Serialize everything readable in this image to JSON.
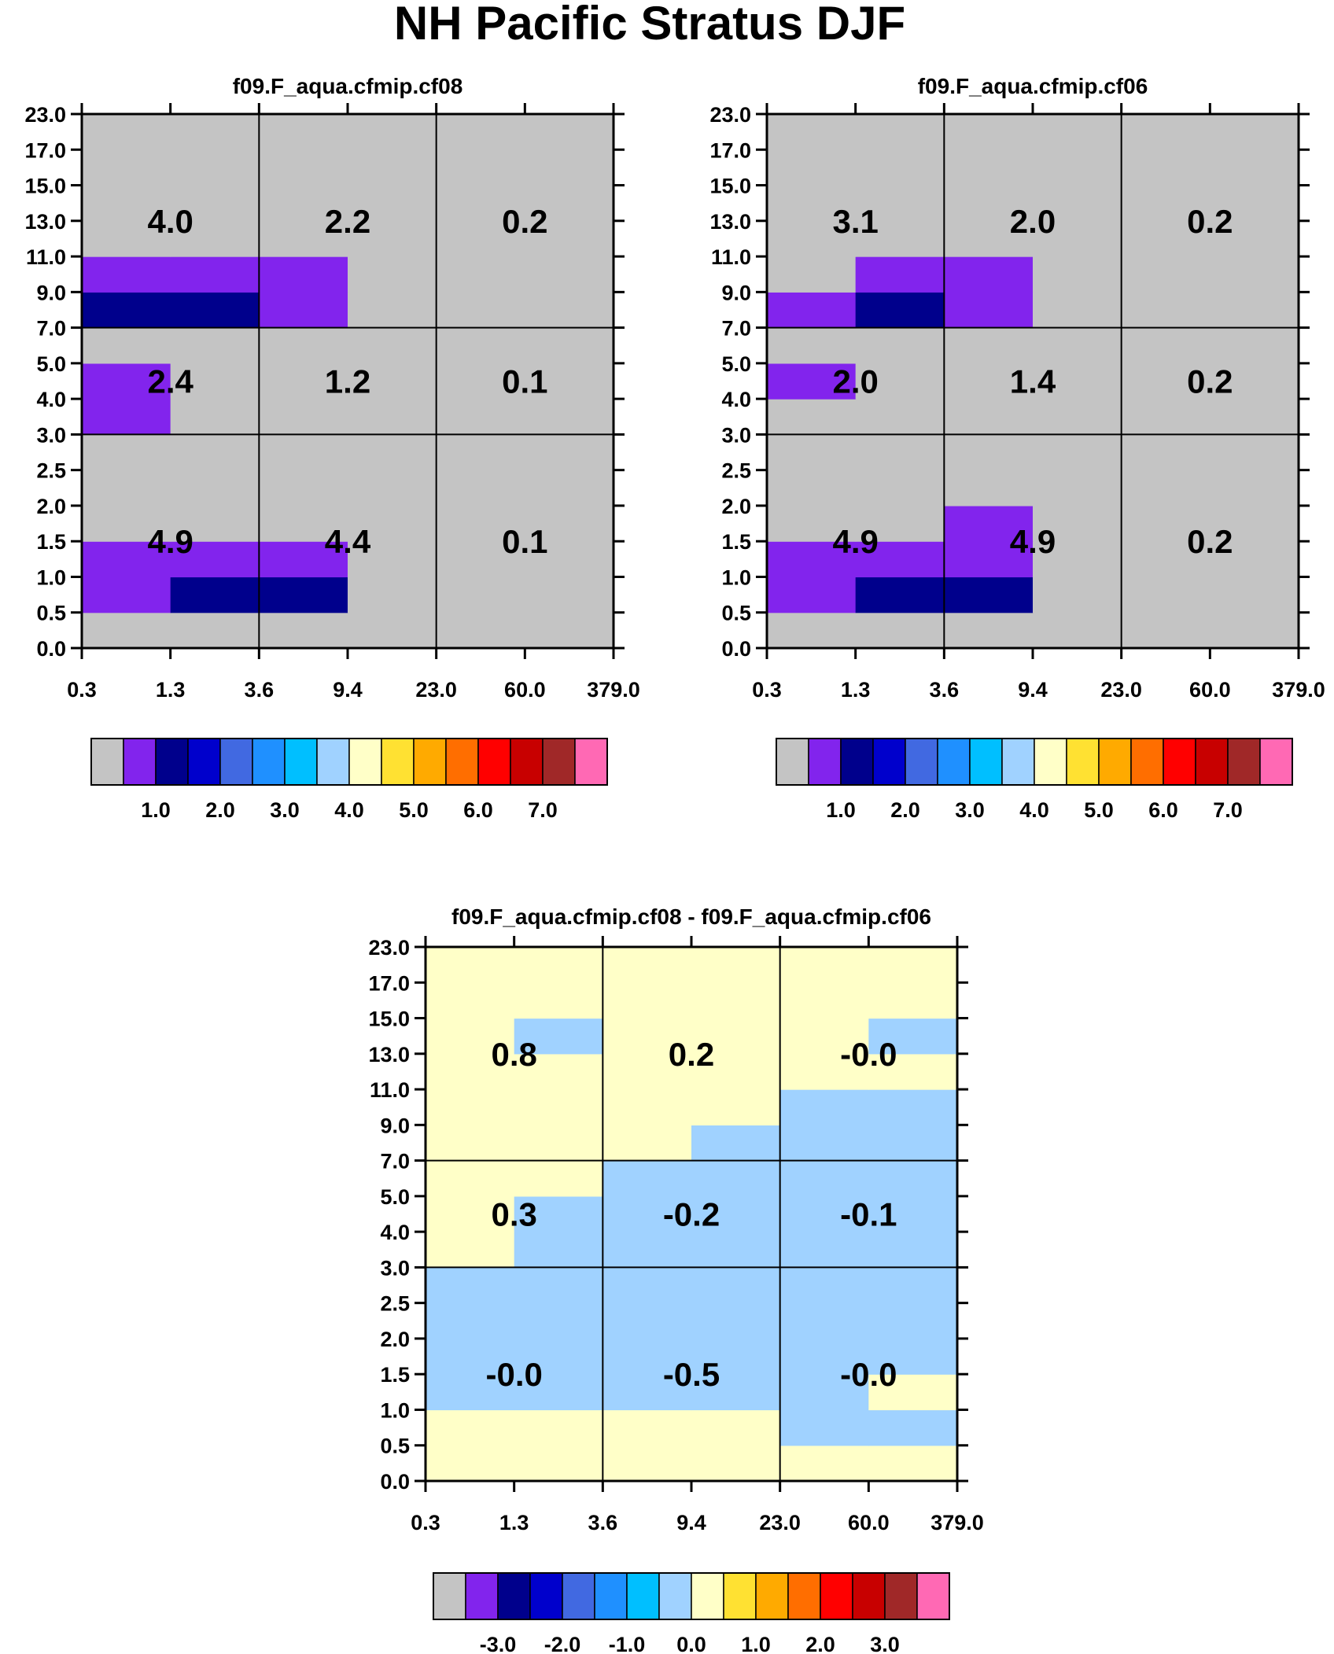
{
  "title": "NH Pacific Stratus DJF",
  "palette": [
    "#c4c4c4",
    "#8224ed",
    "#00008c",
    "#0000cc",
    "#4169e1",
    "#1f90ff",
    "#00bfff",
    "#a0d2ff",
    "#ffffc8",
    "#ffe132",
    "#ffaa00",
    "#ff6e00",
    "#ff0000",
    "#c80000",
    "#a02828",
    "#ff69b4"
  ],
  "chart_data": [
    {
      "type": "heatmap",
      "title": "f09.F_aqua.cfmip.cf08",
      "x_ticks": [
        "0.3",
        "1.3",
        "3.6",
        "9.4",
        "23.0",
        "60.0",
        "379.0"
      ],
      "y_ticks": [
        "0.0",
        "0.5",
        "1.0",
        "1.5",
        "2.0",
        "2.5",
        "3.0",
        "4.0",
        "5.0",
        "7.0",
        "9.0",
        "11.0",
        "13.0",
        "15.0",
        "17.0",
        "23.0"
      ],
      "grid": [
        [
          0,
          0,
          0,
          0,
          0,
          0
        ],
        [
          1,
          2,
          2,
          0,
          0,
          0
        ],
        [
          1,
          1,
          1,
          0,
          0,
          0
        ],
        [
          0,
          0,
          0,
          0,
          0,
          0
        ],
        [
          0,
          0,
          0,
          0,
          0,
          0
        ],
        [
          0,
          0,
          0,
          0,
          0,
          0
        ],
        [
          1,
          0,
          0,
          0,
          0,
          0
        ],
        [
          1,
          0,
          0,
          0,
          0,
          0
        ],
        [
          0,
          0,
          0,
          0,
          0,
          0
        ],
        [
          2,
          2,
          1,
          0,
          0,
          0
        ],
        [
          1,
          1,
          1,
          0,
          0,
          0
        ],
        [
          0,
          0,
          0,
          0,
          0,
          0
        ],
        [
          0,
          0,
          0,
          0,
          0,
          0
        ],
        [
          0,
          0,
          0,
          0,
          0,
          0
        ],
        [
          0,
          0,
          0,
          0,
          0,
          0
        ]
      ],
      "region_labels": [
        [
          "4.9",
          "4.4",
          "0.1"
        ],
        [
          "2.4",
          "1.2",
          "0.1"
        ],
        [
          "4.0",
          "2.2",
          "0.2"
        ]
      ],
      "colorbar": {
        "labels": [
          "1.0",
          "2.0",
          "3.0",
          "4.0",
          "5.0",
          "6.0",
          "7.0"
        ]
      }
    },
    {
      "type": "heatmap",
      "title": "f09.F_aqua.cfmip.cf06",
      "x_ticks": [
        "0.3",
        "1.3",
        "3.6",
        "9.4",
        "23.0",
        "60.0",
        "379.0"
      ],
      "y_ticks": [
        "0.0",
        "0.5",
        "1.0",
        "1.5",
        "2.0",
        "2.5",
        "3.0",
        "4.0",
        "5.0",
        "7.0",
        "9.0",
        "11.0",
        "13.0",
        "15.0",
        "17.0",
        "23.0"
      ],
      "grid": [
        [
          0,
          0,
          0,
          0,
          0,
          0
        ],
        [
          1,
          2,
          2,
          0,
          0,
          0
        ],
        [
          1,
          1,
          1,
          0,
          0,
          0
        ],
        [
          0,
          0,
          1,
          0,
          0,
          0
        ],
        [
          0,
          0,
          0,
          0,
          0,
          0
        ],
        [
          0,
          0,
          0,
          0,
          0,
          0
        ],
        [
          0,
          0,
          0,
          0,
          0,
          0
        ],
        [
          1,
          0,
          0,
          0,
          0,
          0
        ],
        [
          0,
          0,
          0,
          0,
          0,
          0
        ],
        [
          1,
          2,
          1,
          0,
          0,
          0
        ],
        [
          0,
          1,
          1,
          0,
          0,
          0
        ],
        [
          0,
          0,
          0,
          0,
          0,
          0
        ],
        [
          0,
          0,
          0,
          0,
          0,
          0
        ],
        [
          0,
          0,
          0,
          0,
          0,
          0
        ],
        [
          0,
          0,
          0,
          0,
          0,
          0
        ]
      ],
      "region_labels": [
        [
          "4.9",
          "4.9",
          "0.2"
        ],
        [
          "2.0",
          "1.4",
          "0.2"
        ],
        [
          "3.1",
          "2.0",
          "0.2"
        ]
      ],
      "colorbar": {
        "labels": [
          "1.0",
          "2.0",
          "3.0",
          "4.0",
          "5.0",
          "6.0",
          "7.0"
        ]
      }
    },
    {
      "type": "heatmap",
      "title": "f09.F_aqua.cfmip.cf08 - f09.F_aqua.cfmip.cf06",
      "x_ticks": [
        "0.3",
        "1.3",
        "3.6",
        "9.4",
        "23.0",
        "60.0",
        "379.0"
      ],
      "y_ticks": [
        "0.0",
        "0.5",
        "1.0",
        "1.5",
        "2.0",
        "2.5",
        "3.0",
        "4.0",
        "5.0",
        "7.0",
        "9.0",
        "11.0",
        "13.0",
        "15.0",
        "17.0",
        "23.0"
      ],
      "grid": [
        [
          8,
          8,
          8,
          8,
          8,
          8
        ],
        [
          8,
          8,
          8,
          8,
          7,
          7
        ],
        [
          7,
          7,
          7,
          7,
          7,
          8
        ],
        [
          7,
          7,
          7,
          7,
          7,
          7
        ],
        [
          7,
          7,
          7,
          7,
          7,
          7
        ],
        [
          7,
          7,
          7,
          7,
          7,
          7
        ],
        [
          8,
          7,
          7,
          7,
          7,
          7
        ],
        [
          8,
          7,
          7,
          7,
          7,
          7
        ],
        [
          8,
          8,
          7,
          7,
          7,
          7
        ],
        [
          8,
          8,
          8,
          7,
          7,
          7
        ],
        [
          8,
          8,
          8,
          8,
          7,
          7
        ],
        [
          8,
          8,
          8,
          8,
          8,
          8
        ],
        [
          8,
          7,
          8,
          8,
          8,
          7
        ],
        [
          8,
          8,
          8,
          8,
          8,
          8
        ],
        [
          8,
          8,
          8,
          8,
          8,
          8
        ]
      ],
      "region_labels": [
        [
          "-0.0",
          "-0.5",
          "-0.0"
        ],
        [
          "0.3",
          "-0.2",
          "-0.1"
        ],
        [
          "0.8",
          "0.2",
          "-0.0"
        ]
      ],
      "colorbar": {
        "labels": [
          "-3.0",
          "-2.0",
          "-1.0",
          "0.0",
          "1.0",
          "2.0",
          "3.0"
        ]
      }
    }
  ]
}
